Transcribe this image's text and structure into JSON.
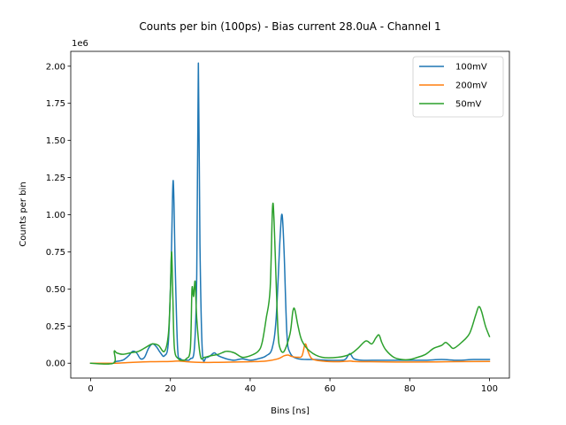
{
  "chart_data": {
    "type": "line",
    "title": "Counts per bin (100ps) - Bias current 28.0uA - Channel 1",
    "xlabel": "Bins [ns]",
    "ylabel": "Counts per bin",
    "offset_text": "1e6",
    "xlim": [
      -5,
      105
    ],
    "ylim": [
      -0.1,
      2.1
    ],
    "x_ticks": [
      0,
      20,
      40,
      60,
      80,
      100
    ],
    "x_tick_labels": [
      "0",
      "20",
      "40",
      "60",
      "80",
      "100"
    ],
    "y_ticks": [
      0,
      0.25,
      0.5,
      0.75,
      1.0,
      1.25,
      1.5,
      1.75,
      2.0
    ],
    "y_tick_labels": [
      "0.00",
      "0.25",
      "0.50",
      "0.75",
      "1.00",
      "1.25",
      "1.50",
      "1.75",
      "2.00"
    ],
    "grid": false,
    "legend_position": "top-right",
    "series": [
      {
        "name": "100mV",
        "color": "#1f77b4",
        "points": [
          [
            0,
            0
          ],
          [
            5.8,
            0
          ],
          [
            6,
            0.01
          ],
          [
            8,
            0.02
          ],
          [
            9.5,
            0.05
          ],
          [
            10.5,
            0.08
          ],
          [
            11.5,
            0.07
          ],
          [
            12.5,
            0.03
          ],
          [
            13.5,
            0.04
          ],
          [
            14.5,
            0.1
          ],
          [
            15.5,
            0.13
          ],
          [
            16.5,
            0.11
          ],
          [
            17.5,
            0.07
          ],
          [
            18.5,
            0.05
          ],
          [
            19.5,
            0.15
          ],
          [
            20.2,
            0.7
          ],
          [
            20.7,
            1.23
          ],
          [
            21.2,
            0.65
          ],
          [
            21.8,
            0.1
          ],
          [
            22.5,
            0.03
          ],
          [
            24,
            0.02
          ],
          [
            25,
            0.03
          ],
          [
            26,
            0.1
          ],
          [
            26.6,
            0.6
          ],
          [
            27,
            2.02
          ],
          [
            27.4,
            0.8
          ],
          [
            28,
            0.08
          ],
          [
            29,
            0.04
          ],
          [
            30,
            0.05
          ],
          [
            31,
            0.07
          ],
          [
            32,
            0.05
          ],
          [
            34,
            0.03
          ],
          [
            36,
            0.02
          ],
          [
            38,
            0.03
          ],
          [
            40,
            0.02
          ],
          [
            42,
            0.03
          ],
          [
            44,
            0.05
          ],
          [
            45.5,
            0.1
          ],
          [
            46.5,
            0.3
          ],
          [
            47.5,
            0.85
          ],
          [
            48,
            1.0
          ],
          [
            48.5,
            0.75
          ],
          [
            49.2,
            0.2
          ],
          [
            50,
            0.07
          ],
          [
            52,
            0.03
          ],
          [
            56,
            0.025
          ],
          [
            60,
            0.02
          ],
          [
            63,
            0.02
          ],
          [
            64,
            0.03
          ],
          [
            65,
            0.065
          ],
          [
            66,
            0.03
          ],
          [
            68,
            0.02
          ],
          [
            72,
            0.02
          ],
          [
            76,
            0.02
          ],
          [
            80,
            0.02
          ],
          [
            84,
            0.02
          ],
          [
            88,
            0.025
          ],
          [
            92,
            0.02
          ],
          [
            96,
            0.025
          ],
          [
            100,
            0.025
          ]
        ]
      },
      {
        "name": "200mV",
        "color": "#ff7f0e",
        "points": [
          [
            0,
            0
          ],
          [
            6,
            0
          ],
          [
            10,
            0.005
          ],
          [
            15,
            0.01
          ],
          [
            20,
            0.012
          ],
          [
            22,
            0.015
          ],
          [
            24,
            0.01
          ],
          [
            28,
            0.005
          ],
          [
            32,
            0.006
          ],
          [
            36,
            0.008
          ],
          [
            40,
            0.01
          ],
          [
            44,
            0.015
          ],
          [
            47,
            0.03
          ],
          [
            48.5,
            0.05
          ],
          [
            49.5,
            0.055
          ],
          [
            50.5,
            0.045
          ],
          [
            52,
            0.04
          ],
          [
            53,
            0.05
          ],
          [
            53.8,
            0.13
          ],
          [
            54.5,
            0.08
          ],
          [
            55.5,
            0.03
          ],
          [
            58,
            0.015
          ],
          [
            62,
            0.01
          ],
          [
            65,
            0.015
          ],
          [
            66,
            0.012
          ],
          [
            70,
            0.01
          ],
          [
            80,
            0.008
          ],
          [
            90,
            0.01
          ],
          [
            100,
            0.012
          ]
        ]
      },
      {
        "name": "50mV",
        "color": "#2ca02c",
        "points": [
          [
            0,
            0
          ],
          [
            5.7,
            0
          ],
          [
            5.9,
            0.08
          ],
          [
            6.5,
            0.07
          ],
          [
            8,
            0.06
          ],
          [
            10,
            0.07
          ],
          [
            12,
            0.08
          ],
          [
            14,
            0.11
          ],
          [
            15.5,
            0.13
          ],
          [
            17,
            0.12
          ],
          [
            18.5,
            0.08
          ],
          [
            19.5,
            0.2
          ],
          [
            20,
            0.5
          ],
          [
            20.3,
            0.75
          ],
          [
            20.6,
            0.45
          ],
          [
            21,
            0.1
          ],
          [
            22,
            0.03
          ],
          [
            23,
            0.02
          ],
          [
            24,
            0.03
          ],
          [
            25,
            0.1
          ],
          [
            25.4,
            0.5
          ],
          [
            25.8,
            0.45
          ],
          [
            26.2,
            0.55
          ],
          [
            26.6,
            0.3
          ],
          [
            27.5,
            0.05
          ],
          [
            28.5,
            0.04
          ],
          [
            30,
            0.05
          ],
          [
            32,
            0.06
          ],
          [
            34,
            0.08
          ],
          [
            36,
            0.07
          ],
          [
            38,
            0.04
          ],
          [
            40,
            0.05
          ],
          [
            42,
            0.08
          ],
          [
            43,
            0.14
          ],
          [
            44,
            0.3
          ],
          [
            45,
            0.5
          ],
          [
            45.6,
            1.05
          ],
          [
            46,
            0.95
          ],
          [
            46.5,
            0.55
          ],
          [
            47,
            0.2
          ],
          [
            47.5,
            0.1
          ],
          [
            48.5,
            0.08
          ],
          [
            50,
            0.2
          ],
          [
            50.7,
            0.35
          ],
          [
            51.2,
            0.36
          ],
          [
            52,
            0.25
          ],
          [
            53,
            0.15
          ],
          [
            55,
            0.08
          ],
          [
            58,
            0.04
          ],
          [
            62,
            0.04
          ],
          [
            65,
            0.06
          ],
          [
            67,
            0.1
          ],
          [
            69,
            0.15
          ],
          [
            70.5,
            0.13
          ],
          [
            71.5,
            0.17
          ],
          [
            72.3,
            0.19
          ],
          [
            73,
            0.14
          ],
          [
            74,
            0.09
          ],
          [
            76,
            0.04
          ],
          [
            78,
            0.025
          ],
          [
            80,
            0.025
          ],
          [
            82,
            0.04
          ],
          [
            84,
            0.06
          ],
          [
            86,
            0.1
          ],
          [
            88,
            0.12
          ],
          [
            89,
            0.14
          ],
          [
            90,
            0.12
          ],
          [
            91,
            0.1
          ],
          [
            93,
            0.14
          ],
          [
            95,
            0.2
          ],
          [
            96.5,
            0.32
          ],
          [
            97.3,
            0.38
          ],
          [
            98,
            0.35
          ],
          [
            99,
            0.25
          ],
          [
            100,
            0.18
          ]
        ]
      }
    ]
  }
}
